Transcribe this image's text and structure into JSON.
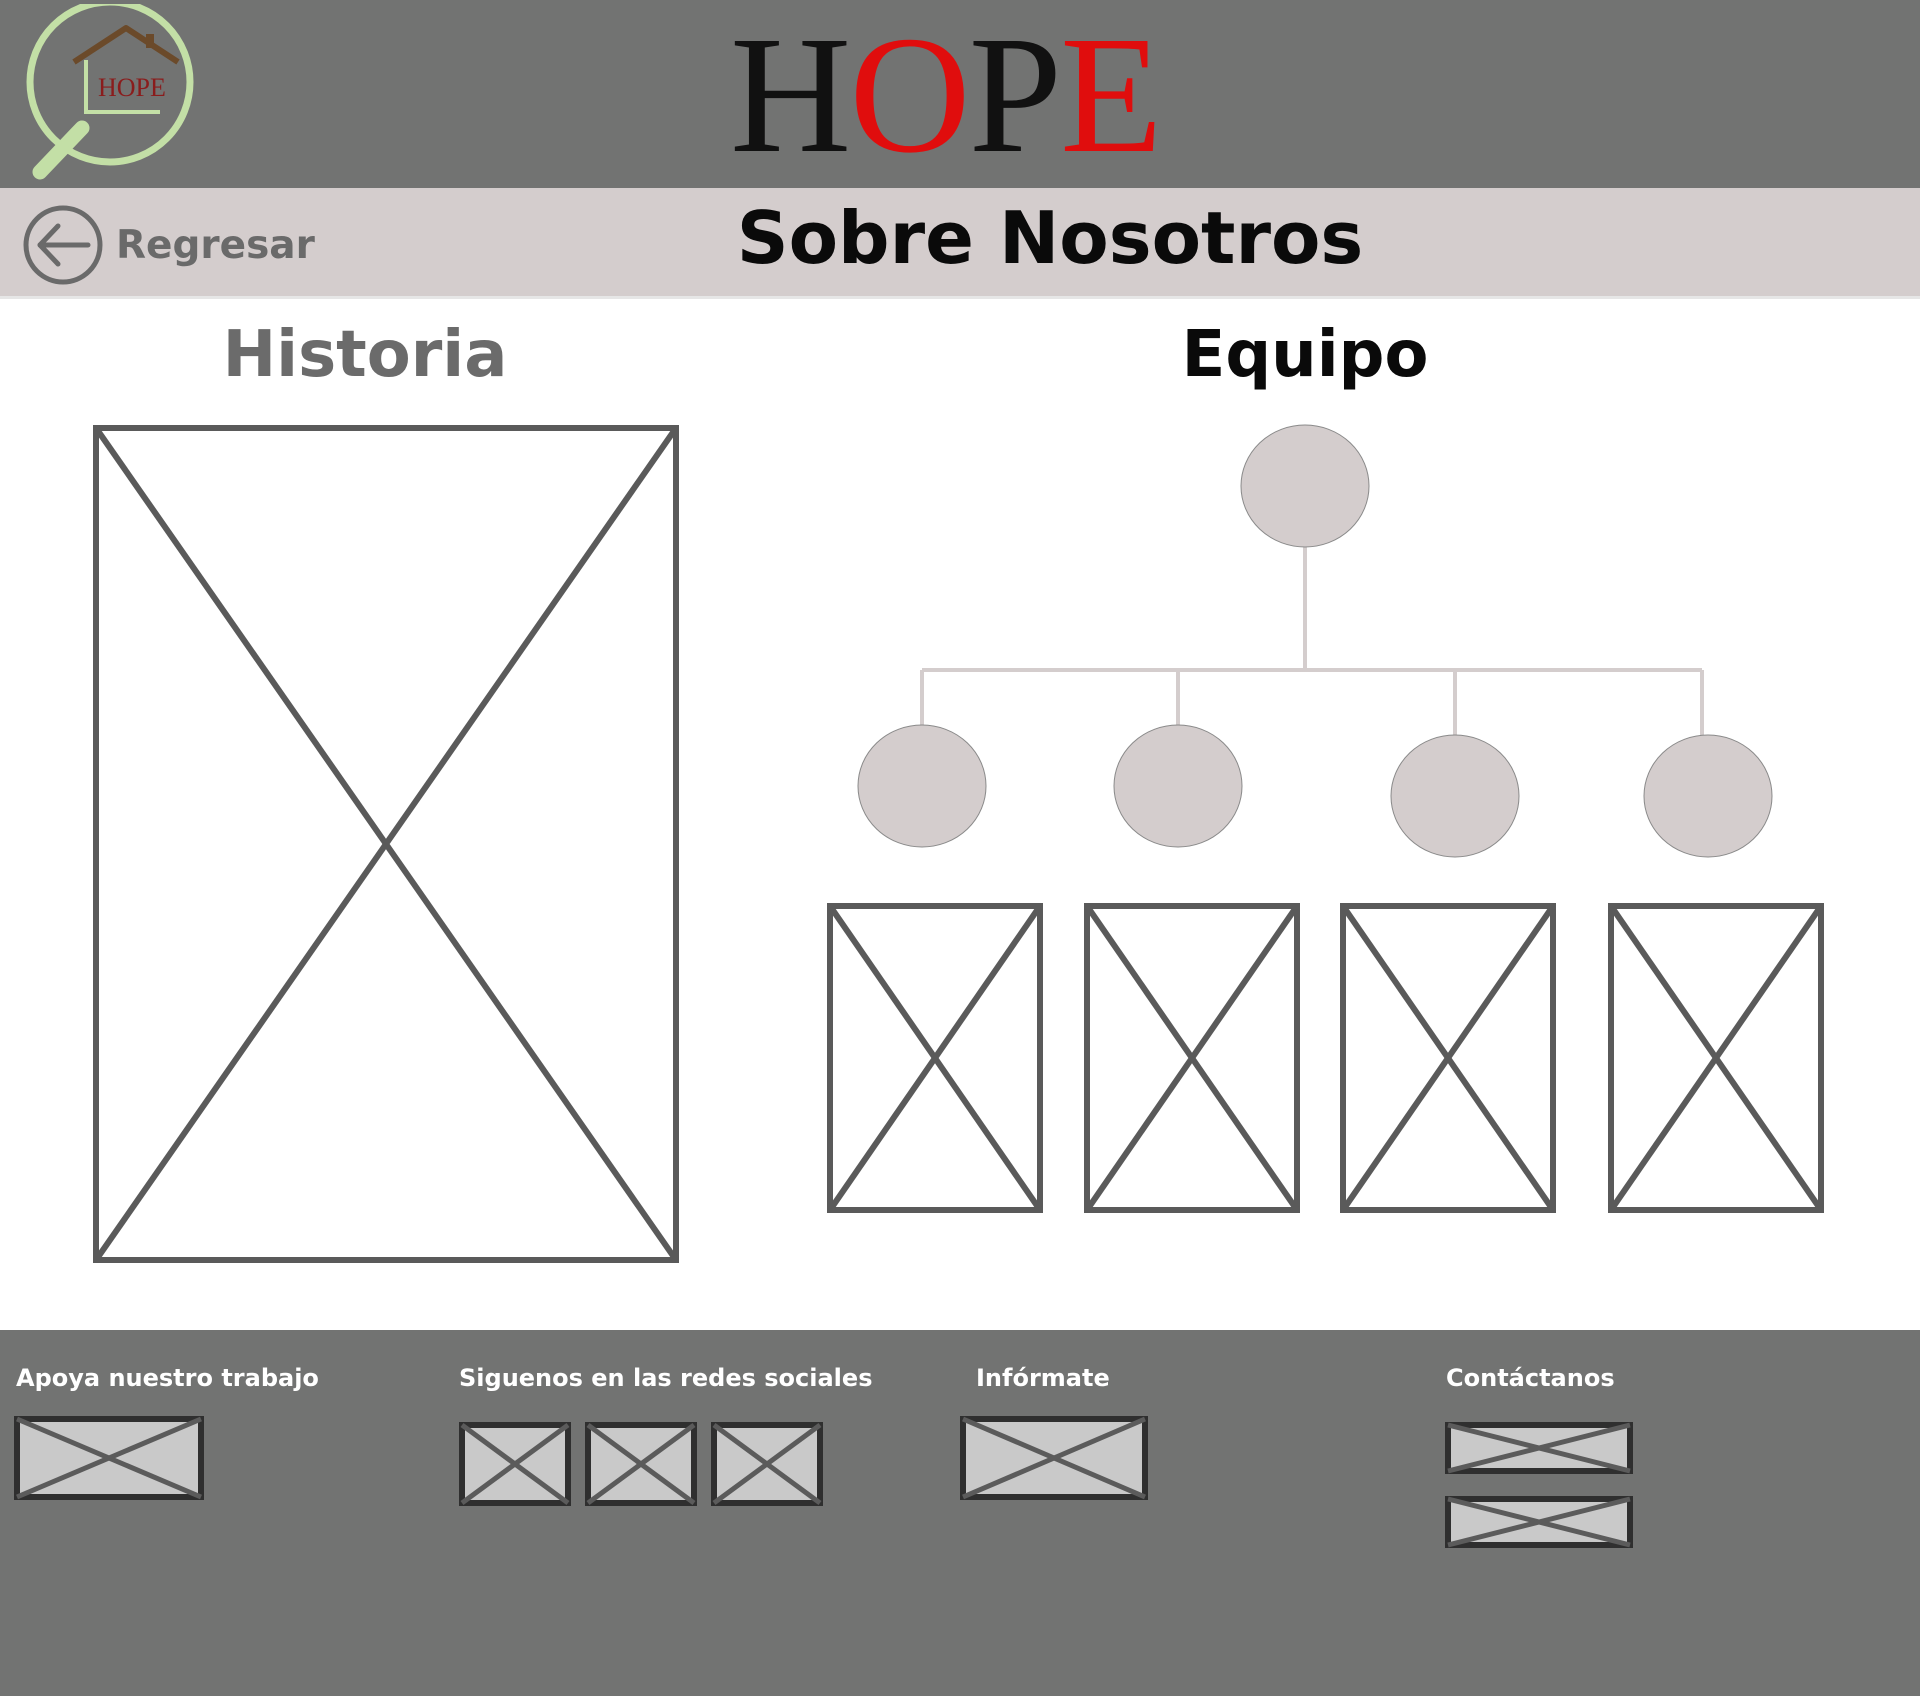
{
  "header": {
    "logo_icon": "magnifier-house-logo-icon",
    "logo_text": "HOPE",
    "brand_title": {
      "h": "H",
      "o": "O",
      "p": "P",
      "e": "E"
    },
    "brand_colors": {
      "black": "#111111",
      "red": "#e00d0d"
    }
  },
  "subheader": {
    "back_label": "Regresar",
    "back_icon": "arrow-left-circle-icon",
    "page_title": "Sobre Nosotros"
  },
  "main": {
    "historia": {
      "title": "Historia",
      "image_icon": "image-placeholder-icon"
    },
    "equipo": {
      "title": "Equipo",
      "leader": {
        "avatar": "avatar-circle"
      },
      "members": [
        {
          "avatar": "avatar-circle",
          "photo_icon": "image-placeholder-icon"
        },
        {
          "avatar": "avatar-circle",
          "photo_icon": "image-placeholder-icon"
        },
        {
          "avatar": "avatar-circle",
          "photo_icon": "image-placeholder-icon"
        },
        {
          "avatar": "avatar-circle",
          "photo_icon": "image-placeholder-icon"
        }
      ]
    }
  },
  "footer": {
    "support": {
      "label": "Apoya nuestro trabajo"
    },
    "social": {
      "label": "Siguenos en las redes sociales"
    },
    "info": {
      "label": "Infórmate"
    },
    "contact": {
      "label": "Contáctanos"
    }
  },
  "colors": {
    "header_bg": "#727372",
    "subbar_bg": "#d4cdcd",
    "main_bg": "#ffffff",
    "avatar_fill": "#d4cdcd",
    "placeholder_stroke": "#5a5a5a"
  }
}
